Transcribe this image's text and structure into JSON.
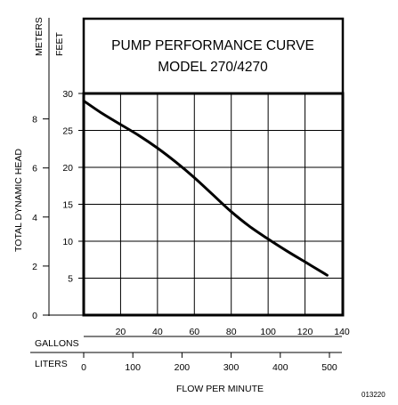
{
  "chart_data": {
    "type": "line",
    "title": [
      "PUMP PERFORMANCE CURVE",
      "MODEL 270/4270"
    ],
    "y_left_unit_top": "METERS",
    "y_right_unit_top": "FEET",
    "ylabel": "TOTAL DYNAMIC HEAD",
    "xlabel": "FLOW PER MINUTE",
    "x_row_labels": {
      "gallons": "GALLONS",
      "liters": "LITERS"
    },
    "figure_id": "013220",
    "x_gallons": {
      "ticks": [
        "20",
        "40",
        "60",
        "80",
        "100",
        "120",
        "140"
      ],
      "range": [
        0,
        140
      ]
    },
    "x_liters": {
      "ticks": [
        "0",
        "100",
        "200",
        "300",
        "400",
        "500"
      ],
      "range": [
        0,
        530
      ]
    },
    "y_feet": {
      "ticks": [
        "5",
        "10",
        "15",
        "20",
        "25",
        "30"
      ],
      "range": [
        0,
        30
      ]
    },
    "y_meters": {
      "ticks": [
        "0",
        "2",
        "4",
        "6",
        "8"
      ],
      "range": [
        0,
        9.14
      ]
    },
    "grid": true,
    "series": [
      {
        "x_unit": "GPM",
        "y_unit": "feet",
        "x": [
          0,
          10,
          20,
          30,
          40,
          50,
          60,
          70,
          80,
          90,
          100,
          110,
          120,
          130,
          132
        ],
        "y": [
          29,
          27.3,
          25.8,
          24.3,
          22.6,
          20.7,
          18.6,
          16.3,
          14.0,
          12.0,
          10.3,
          8.7,
          7.2,
          5.7,
          5.4
        ]
      }
    ]
  }
}
